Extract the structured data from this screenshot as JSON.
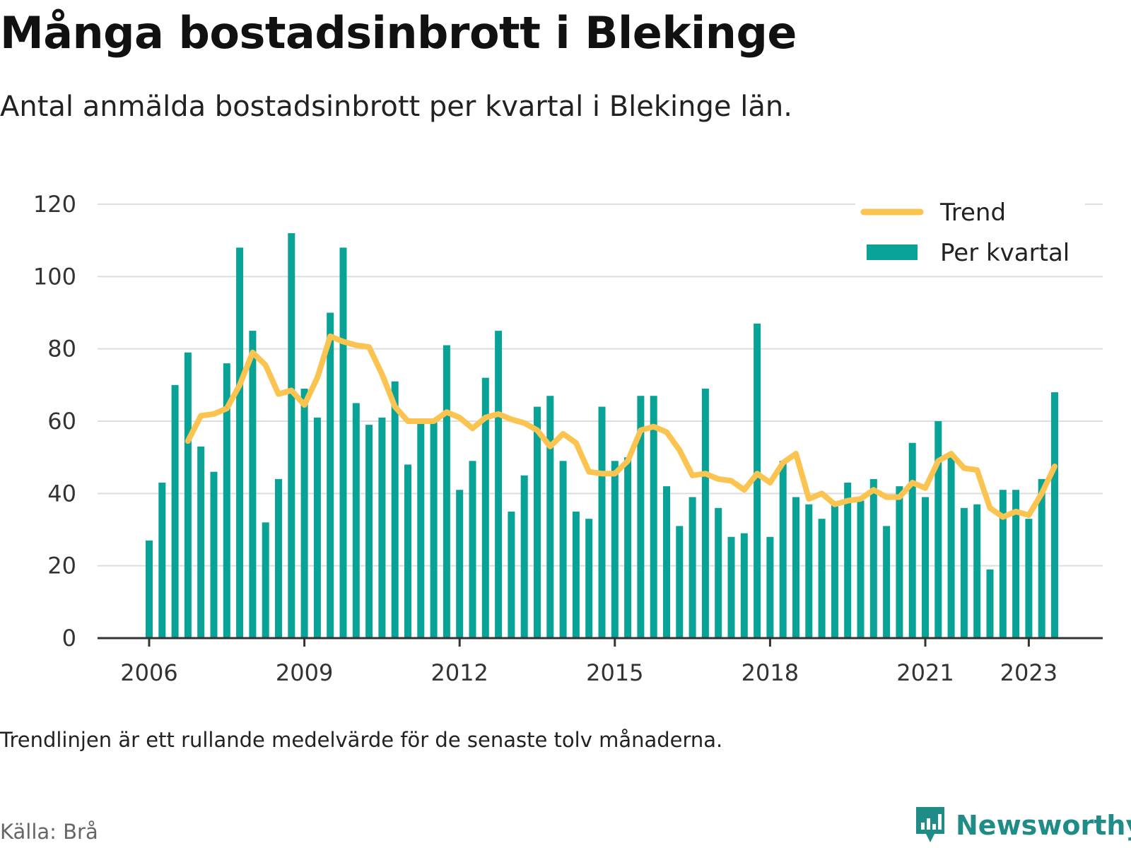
{
  "title": "Många bostadsinbrott i Blekinge",
  "subtitle": "Antal anmälda bostadsinbrott per kvartal i Blekinge län.",
  "footnote": "Trendlinjen är ett rullande medelvärde för de senaste tolv månaderna.",
  "source": "Källa: Brå",
  "brand": "Newsworthy",
  "colors": {
    "bars": "#08a396",
    "trend": "#fbc34f",
    "grid": "#dddddd",
    "axis": "#333333",
    "brand": "#1f8c87"
  },
  "chart_data": {
    "type": "bar",
    "x_tick_labels": [
      "2006",
      "2009",
      "2012",
      "2015",
      "2018",
      "2021",
      "2023"
    ],
    "y_ticks": [
      0,
      20,
      40,
      60,
      80,
      100,
      120
    ],
    "ylim": [
      0,
      120
    ],
    "grid": true,
    "legend": {
      "placement": "top-right",
      "entries": [
        "Trend",
        "Per kvartal"
      ]
    },
    "quarters": [
      "2006-Q1",
      "2006-Q2",
      "2006-Q3",
      "2006-Q4",
      "2007-Q1",
      "2007-Q2",
      "2007-Q3",
      "2007-Q4",
      "2008-Q1",
      "2008-Q2",
      "2008-Q3",
      "2008-Q4",
      "2009-Q1",
      "2009-Q2",
      "2009-Q3",
      "2009-Q4",
      "2010-Q1",
      "2010-Q2",
      "2010-Q3",
      "2010-Q4",
      "2011-Q1",
      "2011-Q2",
      "2011-Q3",
      "2011-Q4",
      "2012-Q1",
      "2012-Q2",
      "2012-Q3",
      "2012-Q4",
      "2013-Q1",
      "2013-Q2",
      "2013-Q3",
      "2013-Q4",
      "2014-Q1",
      "2014-Q2",
      "2014-Q3",
      "2014-Q4",
      "2015-Q1",
      "2015-Q2",
      "2015-Q3",
      "2015-Q4",
      "2016-Q1",
      "2016-Q2",
      "2016-Q3",
      "2016-Q4",
      "2017-Q1",
      "2017-Q2",
      "2017-Q3",
      "2017-Q4",
      "2018-Q1",
      "2018-Q2",
      "2018-Q3",
      "2018-Q4",
      "2019-Q1",
      "2019-Q2",
      "2019-Q3",
      "2019-Q4",
      "2020-Q1",
      "2020-Q2",
      "2020-Q3",
      "2020-Q4",
      "2021-Q1",
      "2021-Q2",
      "2021-Q3",
      "2021-Q4",
      "2022-Q1",
      "2022-Q2",
      "2022-Q3",
      "2022-Q4",
      "2023-Q1",
      "2023-Q2",
      "2023-Q3"
    ],
    "series": [
      {
        "name": "Per kvartal",
        "type": "bar",
        "values": [
          27,
          43,
          70,
          79,
          53,
          46,
          76,
          108,
          85,
          32,
          44,
          112,
          69,
          61,
          90,
          108,
          65,
          59,
          61,
          71,
          48,
          60,
          60,
          81,
          41,
          49,
          72,
          85,
          35,
          45,
          64,
          67,
          49,
          35,
          33,
          64,
          49,
          50,
          67,
          67,
          42,
          31,
          39,
          69,
          36,
          28,
          29,
          87,
          28,
          49,
          39,
          37,
          33,
          37,
          43,
          38,
          44,
          31,
          42,
          54,
          39,
          60,
          51,
          36,
          37,
          19,
          41,
          41,
          33,
          44,
          68
        ]
      },
      {
        "name": "Trend",
        "type": "line",
        "values": [
          null,
          null,
          null,
          54.5,
          61.5,
          62,
          63.5,
          70,
          79,
          75.5,
          67.5,
          68.5,
          64.5,
          72,
          83.5,
          82,
          81,
          80.5,
          73,
          64,
          60,
          60,
          60,
          62.5,
          61,
          58,
          61,
          62,
          60.5,
          59.5,
          57.5,
          53,
          56.5,
          54,
          46,
          45.5,
          45.5,
          49,
          57.5,
          58.5,
          57,
          52,
          45,
          45.5,
          44,
          43.5,
          41,
          45.5,
          43,
          48.5,
          51,
          38.5,
          40,
          37,
          38,
          38.5,
          41,
          39,
          39,
          43,
          41.5,
          49,
          51,
          47,
          46.5,
          36,
          33.5,
          35,
          34,
          40,
          47.5
        ]
      }
    ]
  }
}
